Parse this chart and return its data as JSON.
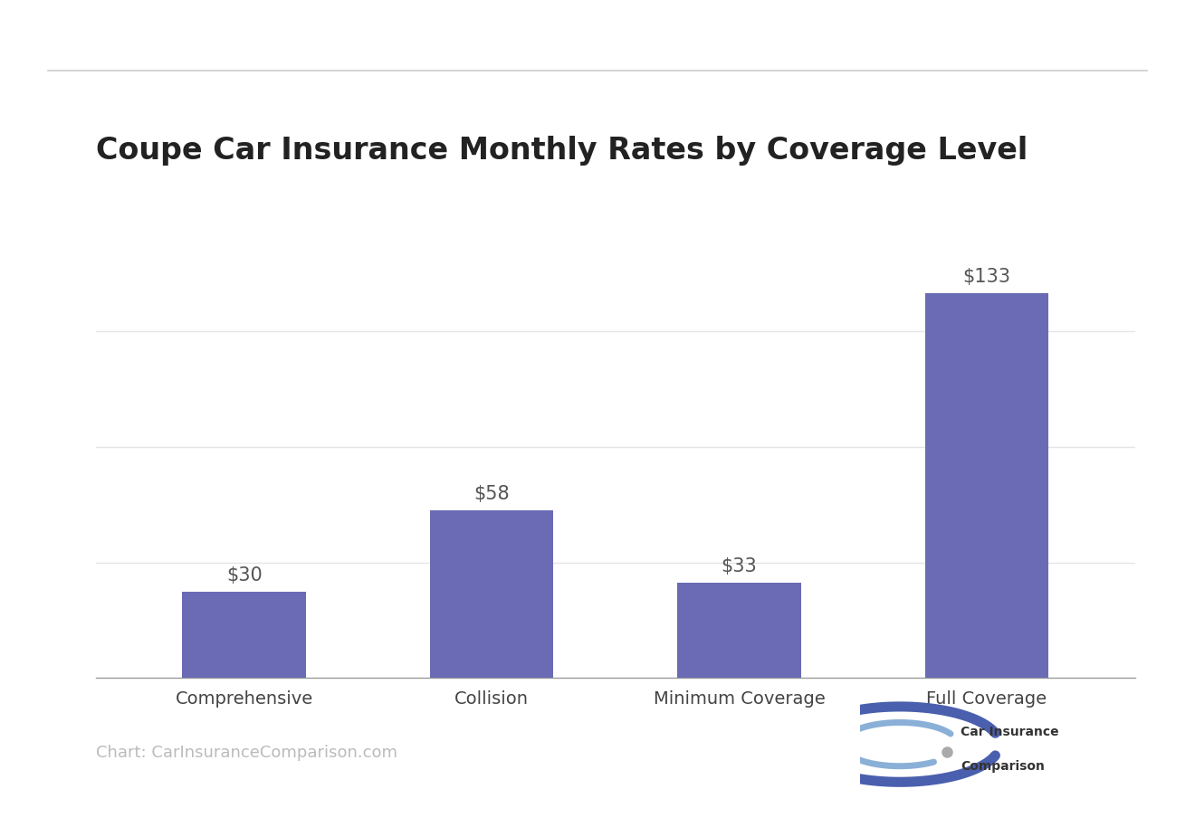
{
  "title": "Coupe Car Insurance Monthly Rates by Coverage Level",
  "categories": [
    "Comprehensive",
    "Collision",
    "Minimum Coverage",
    "Full Coverage"
  ],
  "values": [
    30,
    58,
    33,
    133
  ],
  "bar_color": "#6b6bb5",
  "background_color": "#ffffff",
  "title_fontsize": 24,
  "label_fontsize": 15,
  "tick_fontsize": 14,
  "source_text": "Chart: CarInsuranceComparison.com",
  "source_fontsize": 13,
  "source_color": "#bbbbbb",
  "title_color": "#222222",
  "tick_color": "#444444",
  "ylim": [
    0,
    160
  ],
  "grid_color": "#e5e5e5",
  "bar_value_color": "#555555",
  "top_line_color": "#cccccc",
  "bar_width": 0.5
}
